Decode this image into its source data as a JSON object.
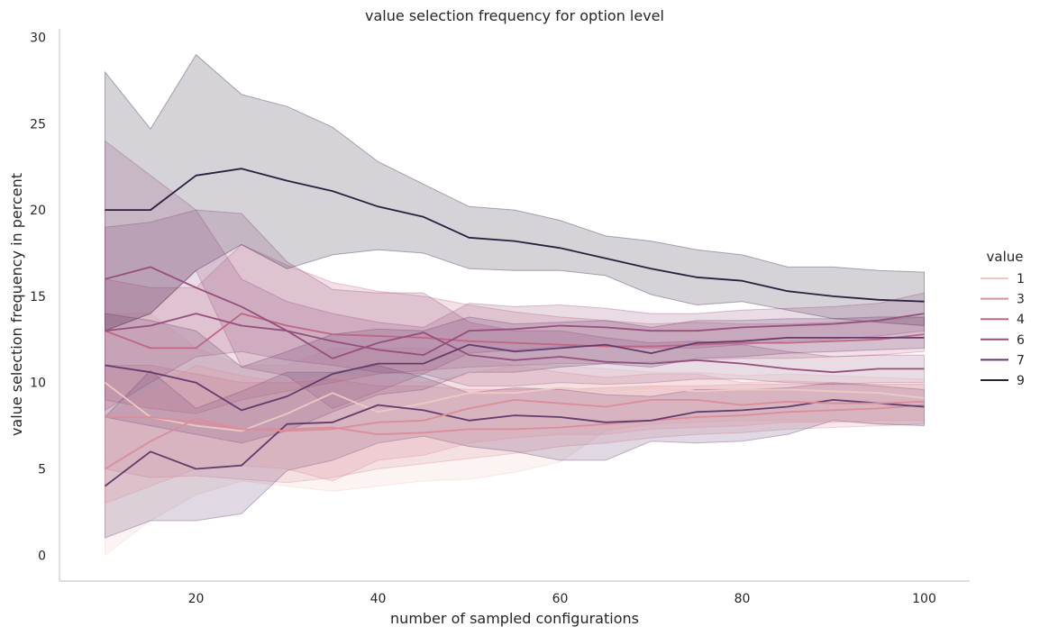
{
  "chart_data": {
    "type": "line",
    "title": "value selection frequency for option level",
    "xlabel": "number of sampled configurations",
    "ylabel": "value selection frequency in percent",
    "xlim": [
      5,
      105
    ],
    "ylim": [
      -1.5,
      30.5
    ],
    "xticks": [
      20,
      40,
      60,
      80,
      100
    ],
    "yticks": [
      0,
      5,
      10,
      15,
      20,
      25,
      30
    ],
    "grid": false,
    "legend": {
      "title": "value",
      "placement": "right"
    },
    "x": [
      10,
      15,
      20,
      25,
      30,
      35,
      40,
      45,
      50,
      55,
      60,
      65,
      70,
      75,
      80,
      85,
      90,
      95,
      100
    ],
    "series": [
      {
        "name": "1",
        "color": "#edc9c4",
        "values": [
          10,
          8,
          7.5,
          7.2,
          8.2,
          9.4,
          8.3,
          8.8,
          9.4,
          9.4,
          9.7,
          9.5,
          9.7,
          9.5,
          9.6,
          9.6,
          9.5,
          9.4,
          9.1
        ],
        "lower": [
          0,
          2,
          3.5,
          4.3,
          4.0,
          3.7,
          4.0,
          4.3,
          4.4,
          4.8,
          5.4,
          7.2,
          7.6,
          7.7,
          7.8,
          7.8,
          7.8,
          7.6,
          7.6
        ],
        "upper": [
          14,
          14,
          12,
          11,
          11,
          12,
          12,
          12,
          11.5,
          11,
          11,
          10.8,
          10.6,
          10.6,
          10.4,
          10.5,
          10.4,
          10.3,
          10.2
        ]
      },
      {
        "name": "3",
        "color": "#da8d9a",
        "values": [
          8,
          8,
          7.7,
          7.3,
          7.3,
          7.4,
          7.0,
          7.1,
          7.3,
          7.3,
          7.4,
          7.6,
          7.8,
          8.0,
          8.1,
          8.3,
          8.4,
          8.5,
          8.7
        ],
        "lower": [
          5,
          4.5,
          4.6,
          4.4,
          4.2,
          4.5,
          5.0,
          5.3,
          5.6,
          5.9,
          6.3,
          6.5,
          6.8,
          7.0,
          7.1,
          7.3,
          7.4,
          7.5,
          7.6
        ],
        "upper": [
          11,
          11,
          10.5,
          10,
          10,
          10.2,
          9.8,
          9.8,
          9.6,
          9.6,
          9.6,
          9.7,
          9.8,
          9.8,
          9.9,
          9.9,
          9.9,
          9.9,
          9.9
        ]
      },
      {
        "name": "4",
        "color": "#bf6683",
        "values": [
          13,
          12,
          12,
          14,
          13.3,
          12.8,
          12.7,
          12.6,
          12.4,
          12.3,
          12.2,
          12.1,
          12.1,
          12.2,
          12.3,
          12.3,
          12.4,
          12.5,
          12.8
        ],
        "lower": [
          9,
          8.5,
          8.2,
          9,
          9.5,
          10,
          10.5,
          10.7,
          10.9,
          11.0,
          11.1,
          11.1,
          11.2,
          11.3,
          11.4,
          11.4,
          11.5,
          11.6,
          11.8
        ],
        "upper": [
          16,
          15.5,
          15.5,
          18,
          16.8,
          15.8,
          15.3,
          15.0,
          14.5,
          14.1,
          13.8,
          13.6,
          13.4,
          13.5,
          13.4,
          13.4,
          13.5,
          13.6,
          13.8
        ]
      },
      {
        "name": "6",
        "color": "#954f7d",
        "values": [
          16,
          16.7,
          15.5,
          14.4,
          13.0,
          11.4,
          12.3,
          12.9,
          11.6,
          11.3,
          11.5,
          11.2,
          11.1,
          11.3,
          11.1,
          10.8,
          10.6,
          10.8,
          10.8
        ],
        "lower": [
          13,
          14,
          16.5,
          10.9,
          10.4,
          8.5,
          9.5,
          10.5,
          9.8,
          9.8,
          10.0,
          9.9,
          10.0,
          10.2,
          10.2,
          10.0,
          9.9,
          10.0,
          10.0
        ],
        "upper": [
          19,
          19.3,
          20,
          19.8,
          17,
          15.4,
          15.2,
          15.2,
          13.5,
          13.0,
          13.0,
          12.6,
          12.3,
          12.4,
          12.2,
          11.8,
          11.5,
          11.6,
          11.6
        ]
      },
      {
        "name": "7",
        "color": "#633b6c",
        "values": [
          11,
          10.6,
          10,
          8.4,
          9.2,
          10.5,
          11.1,
          11.1,
          12.2,
          11.8,
          12.0,
          12.2,
          11.7,
          12.3,
          12.4,
          12.6,
          12.6,
          12.6,
          12.6
        ],
        "lower": [
          8,
          7.5,
          7.0,
          6.5,
          7.2,
          8.3,
          9.3,
          9.6,
          10.6,
          10.6,
          10.9,
          11.1,
          10.9,
          11.4,
          11.5,
          11.7,
          11.8,
          11.9,
          12.0
        ],
        "upper": [
          14,
          13.6,
          13,
          10.9,
          11.8,
          12.8,
          13.1,
          13.0,
          13.8,
          13.4,
          13.5,
          13.6,
          13.2,
          13.6,
          13.6,
          13.7,
          13.7,
          13.8,
          13.8
        ]
      },
      {
        "name": "9",
        "color": "#2b1e3e",
        "values": [
          20,
          20,
          22,
          22.4,
          21.7,
          21.1,
          20.2,
          19.6,
          18.4,
          18.2,
          17.8,
          17.2,
          16.6,
          16.1,
          15.9,
          15.3,
          15.0,
          14.8,
          14.7
        ],
        "lower": [
          13,
          14,
          16.5,
          18,
          16.6,
          17.4,
          17.7,
          17.5,
          16.6,
          16.5,
          16.5,
          16.2,
          15.1,
          14.5,
          14.7,
          14.2,
          13.7,
          13.5,
          13.3
        ],
        "upper": [
          28,
          24.7,
          29,
          26.7,
          26,
          24.8,
          22.8,
          21.5,
          20.2,
          20,
          19.4,
          18.5,
          18.2,
          17.7,
          17.4,
          16.7,
          16.7,
          16.5,
          16.4
        ]
      },
      {
        "name": "",
        "color": "#633b6c",
        "values": [
          4,
          6,
          5,
          5.2,
          7.6,
          7.7,
          8.7,
          8.4,
          7.8,
          8.1,
          8.0,
          7.7,
          7.8,
          8.3,
          8.4,
          8.6,
          9.0,
          8.8,
          8.6
        ],
        "lower": [
          1,
          2,
          2,
          2.4,
          4.9,
          5.5,
          6.5,
          6.9,
          6.3,
          6.0,
          5.5,
          5.5,
          6.6,
          6.5,
          6.6,
          7.0,
          7.8,
          7.6,
          7.5
        ],
        "upper": [
          8,
          10.7,
          8.5,
          9.5,
          10.6,
          10.6,
          11.0,
          10.3,
          9.4,
          9.7,
          9.6,
          9.3,
          9.2,
          9.6,
          9.6,
          9.7,
          10.0,
          9.8,
          9.6
        ]
      },
      {
        "name": "",
        "color": "#da8d9a",
        "values": [
          5,
          6.6,
          7.9,
          7.3,
          7.2,
          7.3,
          7.7,
          7.8,
          8.5,
          9.0,
          8.8,
          8.6,
          9.0,
          9.0,
          8.7,
          8.9,
          8.8,
          8.8,
          8.9
        ],
        "lower": [
          3,
          4,
          5,
          5.2,
          5.0,
          4.3,
          5.5,
          5.8,
          6.5,
          6.8,
          7.0,
          7.0,
          7.3,
          7.4,
          7.5,
          7.7,
          7.7,
          7.8,
          7.8
        ],
        "upper": [
          8,
          9.5,
          11,
          10.4,
          10,
          10.4,
          10.3,
          10.0,
          10.5,
          11.0,
          10.6,
          10.3,
          10.5,
          10.5,
          10.0,
          10.1,
          10.0,
          9.9,
          9.9
        ]
      },
      {
        "name": "",
        "color": "#954f7d",
        "values": [
          13,
          13.3,
          14,
          13.3,
          13.0,
          12.4,
          11.9,
          11.6,
          13.0,
          13.1,
          13.3,
          13.2,
          13.0,
          13.0,
          13.2,
          13.3,
          13.4,
          13.6,
          14.0
        ],
        "lower": [
          8.4,
          10,
          11.5,
          11.8,
          11.3,
          11.0,
          10.6,
          10.5,
          11.7,
          11.9,
          12.1,
          12.1,
          12.0,
          12.0,
          12.2,
          12.4,
          12.5,
          12.7,
          13.0
        ],
        "upper": [
          24,
          22,
          20,
          16,
          14.7,
          14.0,
          13.5,
          13.2,
          14.6,
          14.4,
          14.5,
          14.3,
          14.0,
          14.0,
          14.2,
          14.3,
          14.4,
          14.6,
          15.2
        ]
      }
    ]
  }
}
